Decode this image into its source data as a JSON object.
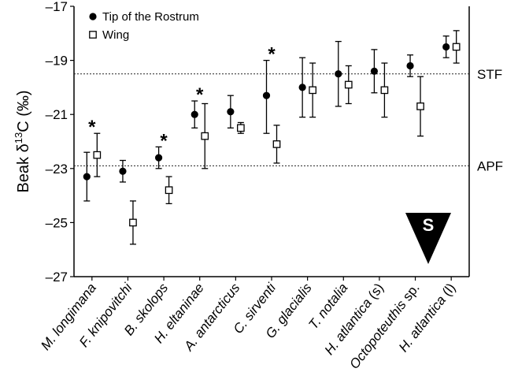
{
  "chart_data": {
    "type": "scatter",
    "ylabel": {
      "prefix": "Beak δ",
      "sup": "13",
      "suffix": "C (‰)"
    },
    "ylim": [
      -27,
      -17
    ],
    "yticks": [
      -17,
      -19,
      -21,
      -23,
      -25,
      -27
    ],
    "ytick_labels": [
      "–17",
      "–19",
      "–21",
      "–23",
      "–25",
      "–27"
    ],
    "categories": [
      {
        "parts": [
          {
            "t": "M. longimana",
            "i": true
          }
        ]
      },
      {
        "parts": [
          {
            "t": "F. knipovitchi",
            "i": true
          }
        ]
      },
      {
        "parts": [
          {
            "t": "B. skolops",
            "i": true
          }
        ]
      },
      {
        "parts": [
          {
            "t": "H. eltaninae",
            "i": true
          }
        ]
      },
      {
        "parts": [
          {
            "t": "A. antarcticus",
            "i": true
          }
        ]
      },
      {
        "parts": [
          {
            "t": "C. sirventi",
            "i": true
          }
        ]
      },
      {
        "parts": [
          {
            "t": "G. glacialis",
            "i": true
          }
        ]
      },
      {
        "parts": [
          {
            "t": "T. notalia",
            "i": true
          }
        ]
      },
      {
        "parts": [
          {
            "t": "H. atlantica",
            "i": true
          },
          {
            "t": " (s)",
            "i": false
          }
        ]
      },
      {
        "parts": [
          {
            "t": "Octopoteuthis",
            "i": true
          },
          {
            "t": " sp.",
            "i": false
          }
        ]
      },
      {
        "parts": [
          {
            "t": "H. atlantica",
            "i": true
          },
          {
            "t": " (l)",
            "i": false
          }
        ]
      }
    ],
    "series": [
      {
        "name": "Tip of the Rostrum",
        "marker": "filled-circle",
        "color": "#000000",
        "values": [
          -23.3,
          -23.1,
          -22.6,
          -21.0,
          -20.9,
          -20.3,
          -20.0,
          -19.5,
          -19.4,
          -19.2,
          -18.5
        ],
        "lower": [
          -24.2,
          -23.5,
          -23.0,
          -21.5,
          -21.5,
          -21.7,
          -21.1,
          -20.7,
          -20.2,
          -19.6,
          -18.9
        ],
        "upper": [
          -22.4,
          -22.7,
          -22.2,
          -20.5,
          -20.3,
          -19.0,
          -18.9,
          -18.3,
          -18.6,
          -18.8,
          -18.1
        ]
      },
      {
        "name": "Wing",
        "marker": "open-square",
        "color": "#000000",
        "values": [
          -22.5,
          -25.0,
          -23.8,
          -21.8,
          -21.5,
          -22.1,
          -20.1,
          -19.9,
          -20.1,
          -20.7,
          -18.5
        ],
        "lower": [
          -23.3,
          -25.8,
          -24.3,
          -23.0,
          -21.7,
          -22.8,
          -21.1,
          -20.6,
          -21.1,
          -21.8,
          -19.1
        ],
        "upper": [
          -21.7,
          -24.2,
          -23.3,
          -20.6,
          -21.3,
          -21.4,
          -19.1,
          -19.2,
          -19.1,
          -19.6,
          -17.9
        ]
      }
    ],
    "significance": [
      "*",
      "",
      "*",
      "*",
      "",
      "*",
      "",
      "",
      "",
      "",
      ""
    ],
    "reference_lines": [
      {
        "label": "STF",
        "y": -19.5,
        "style": "dotted"
      },
      {
        "label": "APF",
        "y": -22.9,
        "style": "dotted"
      }
    ],
    "annotation": {
      "text": "S",
      "shape": "downward-triangle",
      "color": "#000000"
    },
    "legend": {
      "position": "top-left"
    },
    "grid": false
  }
}
